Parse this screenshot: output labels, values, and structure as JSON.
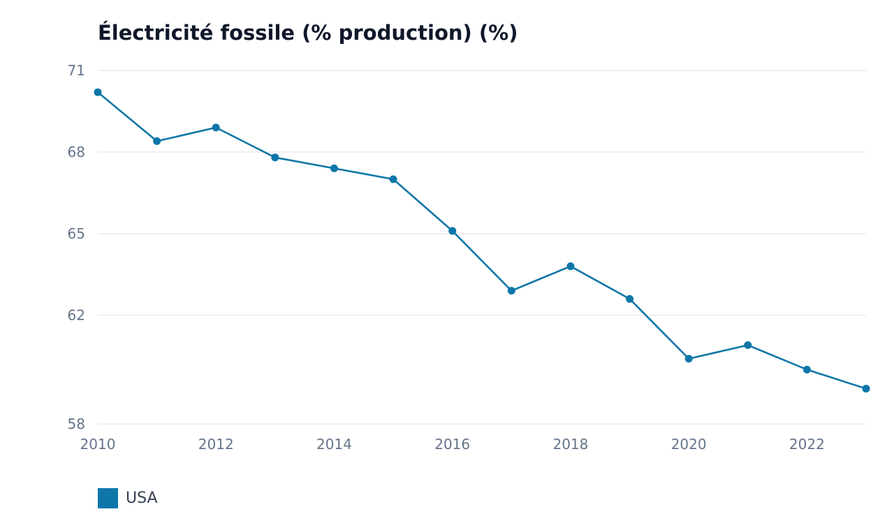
{
  "chart_data": {
    "type": "line",
    "title": "Électricité fossile (% production) (%)",
    "xlabel": "",
    "ylabel": "",
    "x": [
      2010,
      2011,
      2012,
      2013,
      2014,
      2015,
      2016,
      2017,
      2018,
      2019,
      2020,
      2021,
      2022,
      2023
    ],
    "x_ticks": [
      "2010",
      "2012",
      "2014",
      "2016",
      "2018",
      "2020",
      "2022"
    ],
    "y_ticks": [
      "58",
      "62",
      "65",
      "68",
      "71"
    ],
    "ylim": [
      58,
      71
    ],
    "xlim": [
      2010,
      2023
    ],
    "grid": true,
    "legend_position": "bottom-left",
    "series": [
      {
        "name": "USA",
        "color": "#0e76a8",
        "values": [
          70.2,
          68.4,
          68.9,
          67.8,
          67.4,
          67.0,
          65.1,
          62.9,
          63.8,
          62.6,
          60.4,
          60.9,
          60.0,
          59.3
        ]
      }
    ]
  }
}
